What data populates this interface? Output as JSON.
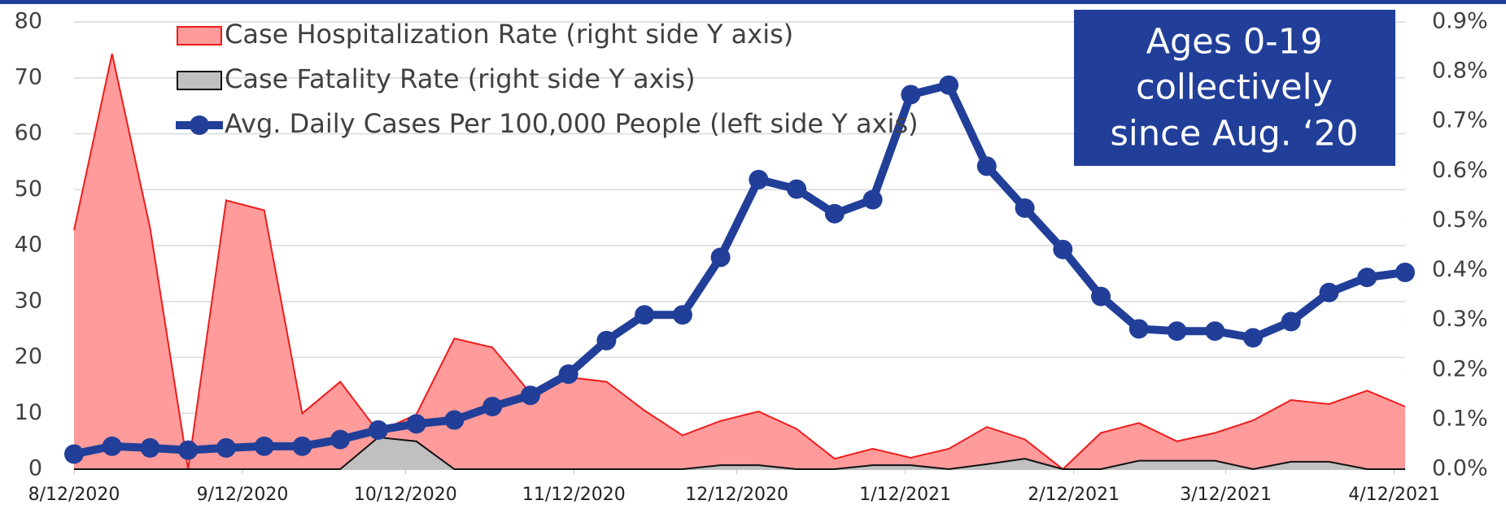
{
  "chart_data": {
    "type": "line",
    "annotation": [
      "Ages 0-19",
      "collectively",
      "since Aug. ‘20"
    ],
    "x": [
      "8/12/2020",
      "8/19/2020",
      "8/26/2020",
      "9/2/2020",
      "9/9/2020",
      "9/16/2020",
      "9/23/2020",
      "9/30/2020",
      "10/7/2020",
      "10/14/2020",
      "10/21/2020",
      "10/28/2020",
      "11/4/2020",
      "11/11/2020",
      "11/18/2020",
      "11/25/2020",
      "12/2/2020",
      "12/9/2020",
      "12/16/2020",
      "12/23/2020",
      "12/30/2020",
      "1/6/2021",
      "1/13/2021",
      "1/20/2021",
      "1/27/2021",
      "2/3/2021",
      "2/10/2021",
      "2/17/2021",
      "2/24/2021",
      "3/3/2021",
      "3/10/2021",
      "3/17/2021",
      "3/24/2021",
      "3/31/2021",
      "4/7/2021",
      "4/14/2021"
    ],
    "xlim": [
      "8/12/2020",
      "4/14/2021"
    ],
    "xticks": [
      "8/12/2020",
      "9/12/2020",
      "10/12/2020",
      "11/12/2020",
      "12/12/2020",
      "1/12/2021",
      "2/12/2021",
      "3/12/2021",
      "4/12/2021"
    ],
    "ylim": [
      0,
      80
    ],
    "yticks": [
      0,
      10,
      20,
      30,
      40,
      50,
      60,
      70,
      80
    ],
    "y2lim": [
      0,
      0.9
    ],
    "y2ticks": [
      {
        "value": 0,
        "label": "0.0%"
      },
      {
        "value": 0.1,
        "label": "0.1%"
      },
      {
        "value": 0.2,
        "label": "0.2%"
      },
      {
        "value": 0.3,
        "label": "0.3%"
      },
      {
        "value": 0.4,
        "label": "0.4%"
      },
      {
        "value": 0.5,
        "label": "0.5%"
      },
      {
        "value": 0.6,
        "label": "0.6%"
      },
      {
        "value": 0.7,
        "label": "0.7%"
      },
      {
        "value": 0.8,
        "label": "0.8%"
      },
      {
        "value": 0.9,
        "label": "0.9%"
      }
    ],
    "grid": true,
    "series": [
      {
        "name": "Case Hospitalization Rate (right side Y axis)",
        "type": "area",
        "axis": "y2",
        "color": "#ff9b9b",
        "stroke": "#ee1c1c",
        "values": [
          0.481,
          0.836,
          0.485,
          0.0,
          0.541,
          0.521,
          0.112,
          0.176,
          0.075,
          0.11,
          0.263,
          0.245,
          0.153,
          0.185,
          0.176,
          0.118,
          0.068,
          0.097,
          0.116,
          0.081,
          0.021,
          0.041,
          0.023,
          0.041,
          0.085,
          0.06,
          0.0,
          0.073,
          0.093,
          0.056,
          0.073,
          0.098,
          0.139,
          0.131,
          0.158,
          0.126
        ]
      },
      {
        "name": "Case Fatality Rate (right side Y axis)",
        "type": "area",
        "axis": "y2",
        "color": "#c0c0c0",
        "stroke": "#111111",
        "values": [
          0,
          0,
          0,
          0,
          0,
          0,
          0,
          0,
          0.064,
          0.056,
          0,
          0,
          0,
          0,
          0,
          0,
          0,
          0.008,
          0.008,
          0,
          0,
          0.008,
          0.008,
          0,
          0.01,
          0.021,
          0,
          0,
          0.017,
          0.017,
          0.017,
          0,
          0.015,
          0.015,
          0,
          0
        ]
      },
      {
        "name": "Avg. Daily Cases Per 100,000 People (left side Y axis)",
        "type": "line",
        "axis": "y",
        "color": "#213f99",
        "values": [
          2.7,
          4.1,
          3.8,
          3.4,
          3.8,
          4.1,
          4.1,
          5.3,
          7.0,
          8.1,
          8.8,
          11.2,
          13.2,
          17.0,
          23.0,
          27.6,
          27.6,
          37.9,
          51.8,
          50.1,
          45.7,
          48.2,
          67.0,
          68.7,
          54.2,
          46.7,
          39.3,
          30.9,
          25.1,
          24.7,
          24.7,
          23.5,
          26.4,
          31.6,
          34.3,
          35.2
        ]
      }
    ]
  }
}
